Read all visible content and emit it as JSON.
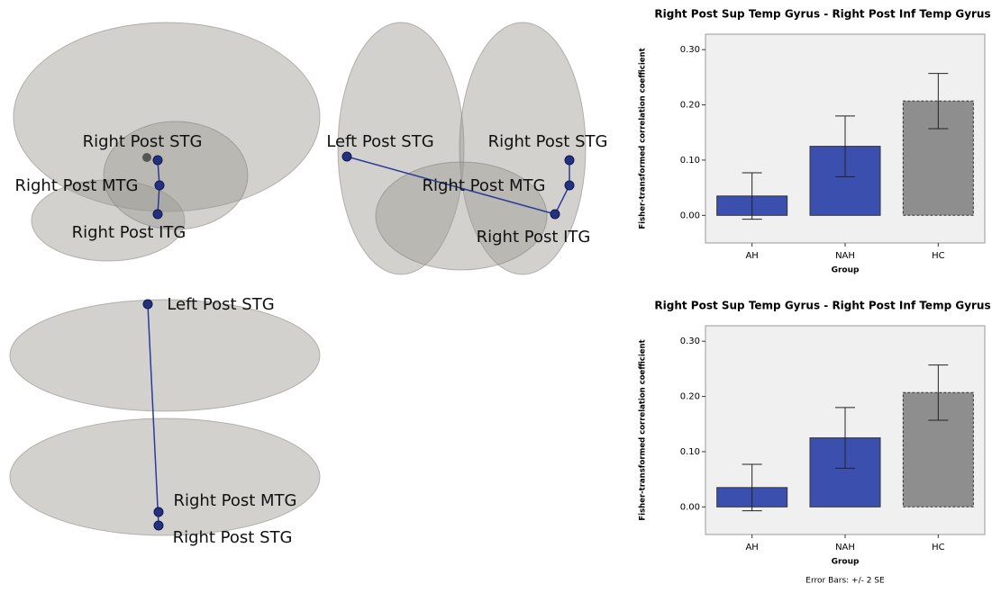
{
  "brain_views": [
    {
      "labels": [
        "Right Post STG",
        "Right Post MTG",
        "Right Post ITG"
      ]
    },
    {
      "labels": [
        "Left Post STG",
        "Right Post STG",
        "Right Post MTG",
        "Right Post ITG"
      ]
    },
    {
      "labels": [
        "Left Post STG",
        "Right Post MTG",
        "Right Post STG"
      ]
    }
  ],
  "chart_data": [
    {
      "type": "bar",
      "title": "Right Post Sup Temp Gyrus - Right Post Inf Temp Gyrus",
      "y_label": "Fisher-transformed correlation coefficient",
      "x_label": "Group",
      "categories": [
        "AH",
        "NAH",
        "HC"
      ],
      "values": [
        0.035,
        0.125,
        0.207
      ],
      "errors": [
        0.042,
        0.055,
        0.05
      ],
      "colors": [
        "#3b50ae",
        "#3b50ae",
        "#8e8e8e"
      ],
      "dashed": [
        false,
        false,
        true
      ],
      "ylim": [
        -0.05,
        0.328
      ],
      "yticks": [
        {
          "value": 0,
          "label": "0.00"
        },
        {
          "value": 0.1,
          "label": "0.10"
        },
        {
          "value": 0.2,
          "label": "0.20"
        },
        {
          "value": 0.3,
          "label": "0.30"
        }
      ]
    },
    {
      "type": "bar",
      "title": "Right Post Sup Temp Gyrus - Right Post Inf Temp Gyrus",
      "y_label": "Fisher-transformed correlation coefficient",
      "x_label": "Group",
      "categories": [
        "AH",
        "NAH",
        "HC"
      ],
      "values": [
        0.035,
        0.125,
        0.207
      ],
      "errors": [
        0.042,
        0.055,
        0.05
      ],
      "colors": [
        "#3b50ae",
        "#3b50ae",
        "#8e8e8e"
      ],
      "dashed": [
        false,
        false,
        true
      ],
      "ylim": [
        -0.05,
        0.328
      ],
      "yticks": [
        {
          "value": 0,
          "label": "0.00"
        },
        {
          "value": 0.1,
          "label": "0.10"
        },
        {
          "value": 0.2,
          "label": "0.20"
        },
        {
          "value": 0.3,
          "label": "0.30"
        }
      ],
      "note": "Error Bars: +/- 2 SE"
    }
  ]
}
